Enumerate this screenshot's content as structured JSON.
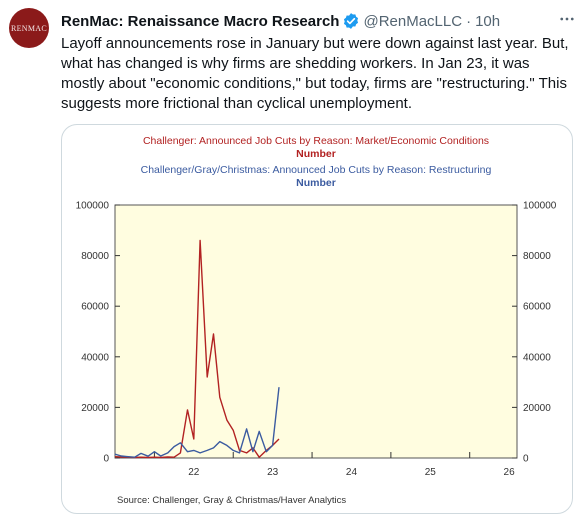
{
  "author": {
    "avatar_text": "RENMAC",
    "display_name": "RenMac: Renaissance Macro Research",
    "handle": "@RenMacLLC",
    "separator": "·",
    "time": "10h",
    "verified_icon": "verified-badge-icon",
    "more_icon": "more-options-icon"
  },
  "tweet": {
    "text": "Layoff announcements rose in January but were down against last year. But, what has changed is why firms are shedding workers. In Jan 23, it was mostly about \"economic conditions,\" but today, firms are \"restructuring.\" This suggests more frictional than cyclical unemployment."
  },
  "colors": {
    "series1": "#b22222",
    "series2": "#3b5ba0",
    "plot_bg": "#fffde0"
  },
  "chart_data": {
    "type": "line",
    "title_lines": [
      {
        "text": "Challenger: Announced Job Cuts by Reason: Market/Economic Conditions",
        "color": "#b22222"
      },
      {
        "text": "Number",
        "color": "#b22222"
      },
      {
        "text": "Challenger/Gray/Christmas: Announced Job Cuts by Reason: Restructuring",
        "color": "#3b5ba0"
      },
      {
        "text": "Number",
        "color": "#3b5ba0"
      }
    ],
    "x_ticks": [
      "22",
      "23",
      "24",
      "25",
      "26"
    ],
    "xlim": [
      2021.5,
      2026.6
    ],
    "ylim": [
      0,
      100000
    ],
    "y_ticks": [
      "0",
      "20000",
      "40000",
      "60000",
      "80000",
      "100000"
    ],
    "source": "Source:   Challenger, Gray & Christmas/Haver Analytics",
    "series": [
      {
        "color": "#b22222",
        "points": [
          [
            2021.5,
            500
          ],
          [
            2021.58,
            400
          ],
          [
            2021.67,
            300
          ],
          [
            2021.75,
            200
          ],
          [
            2021.83,
            300
          ],
          [
            2021.92,
            200
          ],
          [
            2022.0,
            300
          ],
          [
            2022.08,
            200
          ],
          [
            2022.17,
            400
          ],
          [
            2022.25,
            300
          ],
          [
            2022.33,
            2000
          ],
          [
            2022.42,
            19000
          ],
          [
            2022.5,
            7500
          ],
          [
            2022.58,
            86000
          ],
          [
            2022.67,
            32000
          ],
          [
            2022.75,
            49000
          ],
          [
            2022.83,
            24000
          ],
          [
            2022.92,
            15000
          ],
          [
            2023.0,
            11000
          ],
          [
            2023.08,
            3000
          ],
          [
            2023.17,
            2000
          ],
          [
            2023.25,
            4000
          ],
          [
            2023.33,
            300
          ],
          [
            2023.42,
            3000
          ],
          [
            2023.5,
            5000
          ],
          [
            2023.58,
            7500
          ]
        ]
      },
      {
        "color": "#3b5ba0",
        "points": [
          [
            2021.5,
            1500
          ],
          [
            2021.58,
            800
          ],
          [
            2021.67,
            500
          ],
          [
            2021.75,
            300
          ],
          [
            2021.83,
            1800
          ],
          [
            2021.92,
            700
          ],
          [
            2022.0,
            2500
          ],
          [
            2022.08,
            800
          ],
          [
            2022.17,
            2000
          ],
          [
            2022.25,
            4500
          ],
          [
            2022.33,
            6000
          ],
          [
            2022.42,
            2500
          ],
          [
            2022.5,
            3000
          ],
          [
            2022.58,
            2000
          ],
          [
            2022.67,
            3000
          ],
          [
            2022.75,
            4000
          ],
          [
            2022.83,
            6500
          ],
          [
            2022.92,
            5000
          ],
          [
            2023.0,
            3000
          ],
          [
            2023.08,
            2000
          ],
          [
            2023.17,
            11500
          ],
          [
            2023.25,
            2500
          ],
          [
            2023.33,
            10500
          ],
          [
            2023.42,
            2500
          ],
          [
            2023.5,
            5000
          ],
          [
            2023.58,
            28000
          ]
        ]
      }
    ]
  }
}
